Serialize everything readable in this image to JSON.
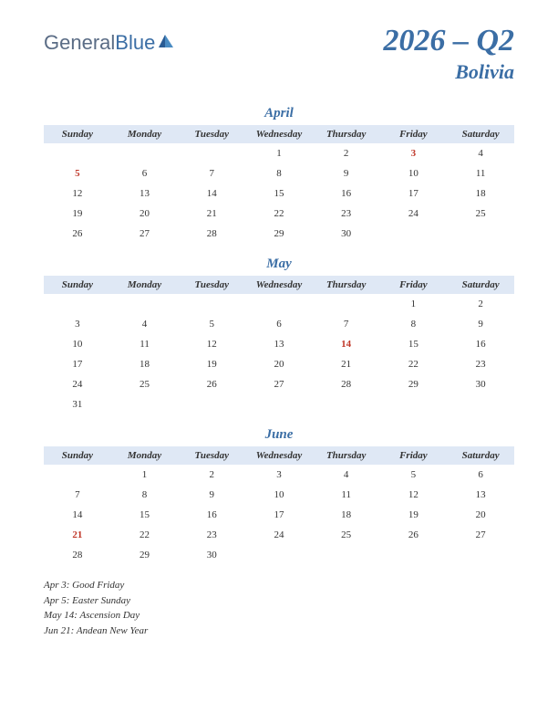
{
  "logo": {
    "part1": "General",
    "part2": "Blue"
  },
  "title": {
    "quarter": "2026 – Q2",
    "country": "Bolivia"
  },
  "day_headers": [
    "Sunday",
    "Monday",
    "Tuesday",
    "Wednesday",
    "Thursday",
    "Friday",
    "Saturday"
  ],
  "colors": {
    "accent": "#3b6ea5",
    "header_bg": "#dfe8f5",
    "holiday": "#c0392b",
    "text": "#333333",
    "background": "#ffffff"
  },
  "months": [
    {
      "name": "April",
      "weeks": [
        [
          "",
          "",
          "",
          "1",
          "2",
          "3",
          "4"
        ],
        [
          "5",
          "6",
          "7",
          "8",
          "9",
          "10",
          "11"
        ],
        [
          "12",
          "13",
          "14",
          "15",
          "16",
          "17",
          "18"
        ],
        [
          "19",
          "20",
          "21",
          "22",
          "23",
          "24",
          "25"
        ],
        [
          "26",
          "27",
          "28",
          "29",
          "30",
          "",
          ""
        ]
      ],
      "holidays": [
        "3",
        "5"
      ]
    },
    {
      "name": "May",
      "weeks": [
        [
          "",
          "",
          "",
          "",
          "",
          "1",
          "2"
        ],
        [
          "3",
          "4",
          "5",
          "6",
          "7",
          "8",
          "9"
        ],
        [
          "10",
          "11",
          "12",
          "13",
          "14",
          "15",
          "16"
        ],
        [
          "17",
          "18",
          "19",
          "20",
          "21",
          "22",
          "23"
        ],
        [
          "24",
          "25",
          "26",
          "27",
          "28",
          "29",
          "30"
        ],
        [
          "31",
          "",
          "",
          "",
          "",
          "",
          ""
        ]
      ],
      "holidays": [
        "14"
      ]
    },
    {
      "name": "June",
      "weeks": [
        [
          "",
          "1",
          "2",
          "3",
          "4",
          "5",
          "6"
        ],
        [
          "7",
          "8",
          "9",
          "10",
          "11",
          "12",
          "13"
        ],
        [
          "14",
          "15",
          "16",
          "17",
          "18",
          "19",
          "20"
        ],
        [
          "21",
          "22",
          "23",
          "24",
          "25",
          "26",
          "27"
        ],
        [
          "28",
          "29",
          "30",
          "",
          "",
          "",
          ""
        ]
      ],
      "holidays": [
        "21"
      ]
    }
  ],
  "holiday_list": [
    "Apr 3: Good Friday",
    "Apr 5: Easter Sunday",
    "May 14: Ascension Day",
    "Jun 21: Andean New Year"
  ]
}
